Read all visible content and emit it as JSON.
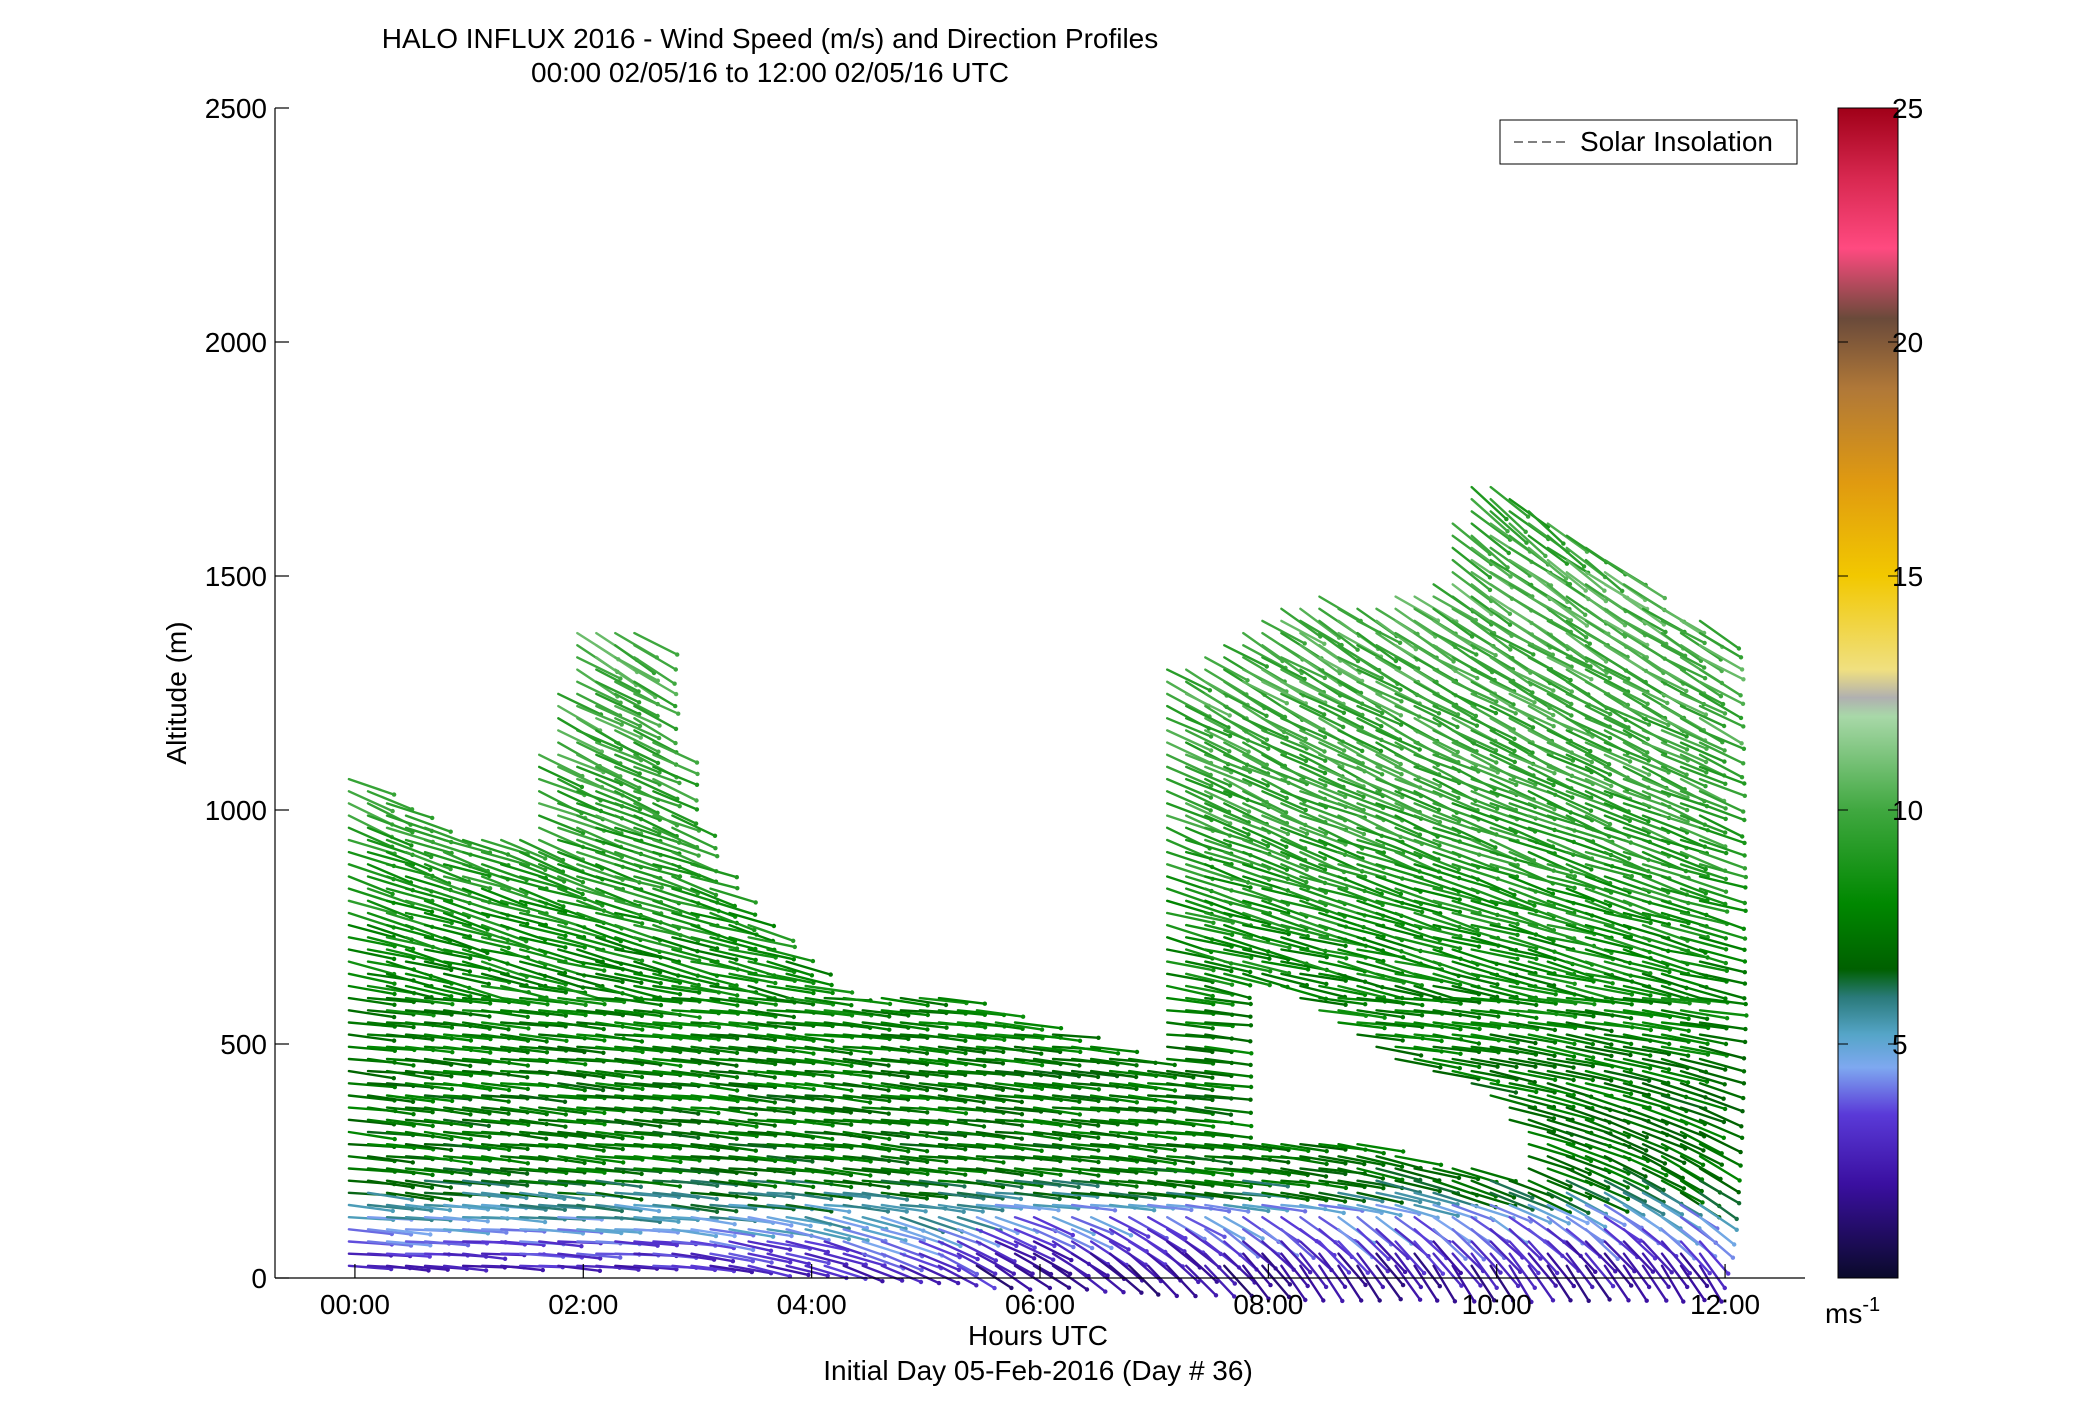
{
  "chart_data": {
    "type": "wind-barb-profile",
    "title": "HALO INFLUX 2016 - Wind Speed (m/s) and Direction Profiles",
    "subtitle": "00:00 02/05/16 to 12:00 02/05/16  UTC",
    "xlabel": "Hours UTC",
    "xlabel2": "Initial Day 05-Feb-2016 (Day # 36)",
    "ylabel": "Altitude (m)",
    "xlim": [
      -0.7,
      12.7
    ],
    "ylim": [
      0,
      2500
    ],
    "x_ticks": [
      {
        "value": 0,
        "label": "00:00"
      },
      {
        "value": 2,
        "label": "02:00"
      },
      {
        "value": 4,
        "label": "04:00"
      },
      {
        "value": 6,
        "label": "06:00"
      },
      {
        "value": 8,
        "label": "08:00"
      },
      {
        "value": 10,
        "label": "10:00"
      },
      {
        "value": 12,
        "label": "12:00"
      }
    ],
    "y_ticks": [
      {
        "value": 0,
        "label": "0"
      },
      {
        "value": 500,
        "label": "500"
      },
      {
        "value": 1000,
        "label": "1000"
      },
      {
        "value": 1500,
        "label": "1500"
      },
      {
        "value": 2000,
        "label": "2000"
      },
      {
        "value": 2500,
        "label": "2500"
      }
    ],
    "legend": {
      "label": "Solar Insolation",
      "placement": "top-right",
      "line_style": "dashed",
      "color": "#808080"
    },
    "colorbar": {
      "unit": "ms",
      "unit_exp": "-1",
      "range": [
        0,
        25
      ],
      "ticks": [
        {
          "value": 5,
          "label": "5"
        },
        {
          "value": 10,
          "label": "10"
        },
        {
          "value": 15,
          "label": "15"
        },
        {
          "value": 20,
          "label": "20"
        },
        {
          "value": 25,
          "label": "25"
        }
      ],
      "stops": [
        {
          "v": 0,
          "c": "#0a0a2a"
        },
        {
          "v": 2,
          "c": "#3a0fa0"
        },
        {
          "v": 3.5,
          "c": "#5a3ad8"
        },
        {
          "v": 4.5,
          "c": "#7ea8f0"
        },
        {
          "v": 5.2,
          "c": "#55a5c8"
        },
        {
          "v": 6,
          "c": "#2a7a7a"
        },
        {
          "v": 6.6,
          "c": "#006000"
        },
        {
          "v": 8,
          "c": "#008800"
        },
        {
          "v": 10,
          "c": "#40a840"
        },
        {
          "v": 12,
          "c": "#a8d8a8"
        },
        {
          "v": 12.4,
          "c": "#b0b0b0"
        },
        {
          "v": 13,
          "c": "#f0e080"
        },
        {
          "v": 15,
          "c": "#f2c800"
        },
        {
          "v": 17,
          "c": "#e09a10"
        },
        {
          "v": 19,
          "c": "#b07838"
        },
        {
          "v": 20.5,
          "c": "#6a4a3a"
        },
        {
          "v": 22,
          "c": "#ff4a80"
        },
        {
          "v": 23.5,
          "c": "#d82850"
        },
        {
          "v": 25,
          "c": "#a00018"
        }
      ]
    },
    "wind_profile": {
      "time_start": 0,
      "time_step": 0.166667,
      "n_times": 72,
      "altitude_step": 26,
      "altitude_first": 26,
      "top_profile": [
        {
          "t": 0,
          "top": 1080
        },
        {
          "t": 0.5,
          "top": 1000
        },
        {
          "t": 1.0,
          "top": 940
        },
        {
          "t": 1.5,
          "top": 960
        },
        {
          "t": 1.75,
          "top": 1200
        },
        {
          "t": 2.0,
          "top": 1400
        },
        {
          "t": 2.5,
          "top": 1390
        },
        {
          "t": 2.75,
          "top": 1050
        },
        {
          "t": 3.0,
          "top": 900
        },
        {
          "t": 3.4,
          "top": 780
        },
        {
          "t": 4.0,
          "top": 640
        },
        {
          "t": 4.5,
          "top": 590
        },
        {
          "t": 5.0,
          "top": 620
        },
        {
          "t": 5.5,
          "top": 580
        },
        {
          "t": 6.0,
          "top": 540
        },
        {
          "t": 6.5,
          "top": 500
        },
        {
          "t": 7.0,
          "top": 460
        },
        {
          "t": 7.15,
          "top": 1300
        },
        {
          "t": 7.5,
          "top": 1330
        },
        {
          "t": 8.0,
          "top": 1420
        },
        {
          "t": 8.5,
          "top": 1460
        },
        {
          "t": 9.0,
          "top": 1440
        },
        {
          "t": 9.5,
          "top": 1500
        },
        {
          "t": 9.75,
          "top": 1700
        },
        {
          "t": 10.0,
          "top": 1700
        },
        {
          "t": 10.5,
          "top": 1620
        },
        {
          "t": 11.0,
          "top": 1560
        },
        {
          "t": 11.5,
          "top": 1440
        },
        {
          "t": 11.8,
          "top": 1420
        }
      ],
      "gap_region": [
        {
          "t": 7.65,
          "lo": 290,
          "hi": 650
        },
        {
          "t": 8.0,
          "lo": 300,
          "hi": 640
        },
        {
          "t": 8.5,
          "lo": 300,
          "hi": 560
        },
        {
          "t": 9.0,
          "lo": 280,
          "hi": 480
        },
        {
          "t": 9.5,
          "lo": 250,
          "hi": 440
        },
        {
          "t": 10.0,
          "lo": 230,
          "hi": 370
        },
        {
          "t": 10.3,
          "lo": 230,
          "hi": 300
        }
      ],
      "speed_by_height": [
        {
          "h": 0,
          "s": 2.5
        },
        {
          "h": 70,
          "s": 3.5
        },
        {
          "h": 110,
          "s": 4.8
        },
        {
          "h": 170,
          "s": 6.0
        },
        {
          "h": 230,
          "s": 7.2
        },
        {
          "h": 450,
          "s": 7.3
        },
        {
          "h": 700,
          "s": 8.2
        },
        {
          "h": 1000,
          "s": 9.5
        },
        {
          "h": 1500,
          "s": 10.3
        },
        {
          "h": 1700,
          "s": 9.2
        }
      ],
      "direction_note": "Barbs near horizontal at night below 1000 m, steepening toward the surface after 08:00"
    }
  }
}
